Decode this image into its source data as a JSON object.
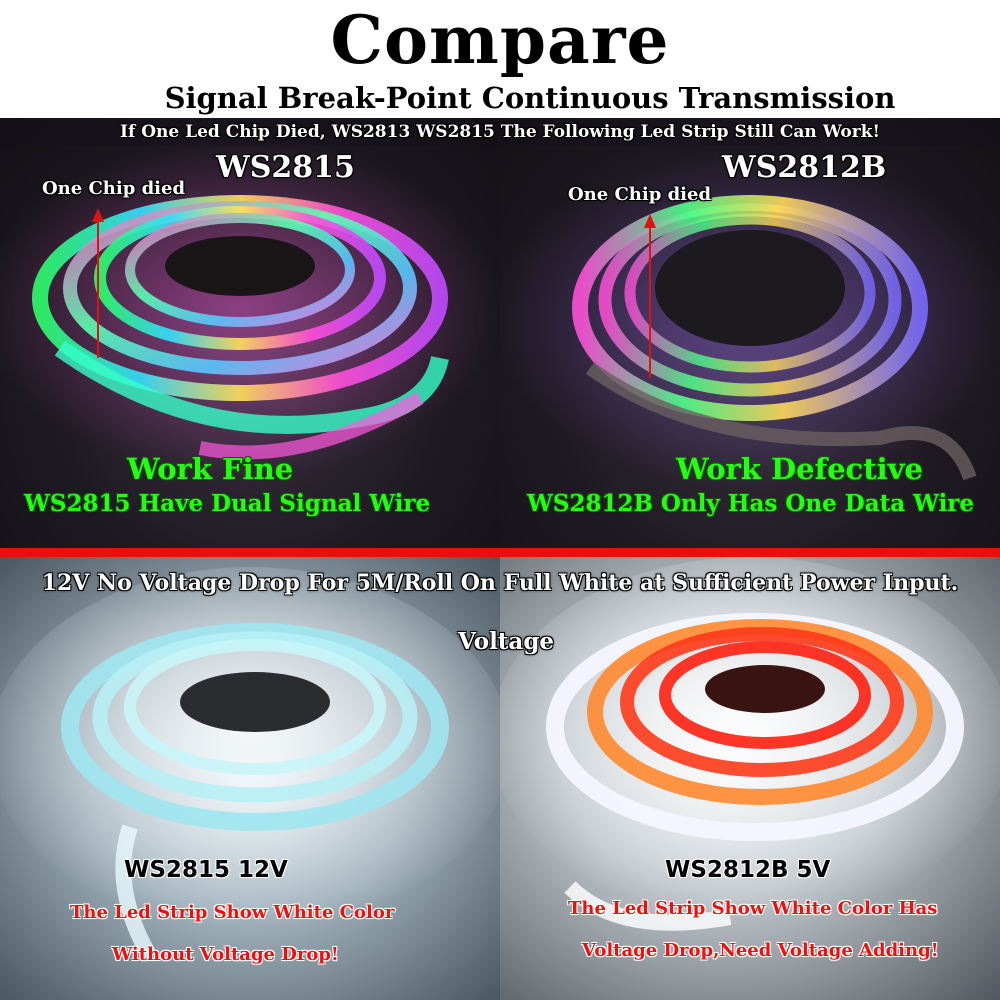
{
  "header": {
    "title": "Compare",
    "subtitle": "Signal Break-Point Continuous Transmission"
  },
  "top_section": {
    "note": "If One Led Chip Died, WS2813 WS2815 The Following Led Strip Still Can Work!",
    "left": {
      "model": "WS2815",
      "chip_label": "One Chip died",
      "status": "Work Fine",
      "description": "WS2815 Have Dual Signal Wire"
    },
    "right": {
      "model": "WS2812B",
      "chip_label": "One Chip died",
      "status": "Work Defective",
      "description": "WS2812B Only Has One Data Wire"
    }
  },
  "bottom_section": {
    "note": "12V No Voltage Drop For 5M/Roll On Full White at Sufficient Power Input.",
    "center_word": "Voltage",
    "left": {
      "model": "WS2815 12V",
      "line1": "The Led Strip Show White Color",
      "line2": "Without Voltage Drop!"
    },
    "right": {
      "model": "WS2812B 5V",
      "line1": "The Led Strip Show White Color Has",
      "line2": "Voltage Drop,Need Voltage Adding!"
    }
  },
  "colors": {
    "divider": "#e8100f",
    "status_green": "#22ff10",
    "warning_red": "#f00f0f"
  }
}
